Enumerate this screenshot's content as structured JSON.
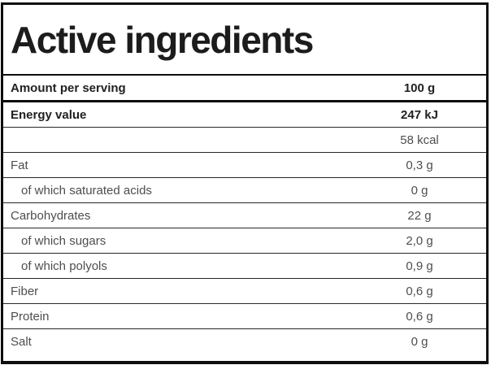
{
  "title": "Active ingredients",
  "table": {
    "serving_row": {
      "label": "Amount per serving",
      "value": "100 g"
    },
    "rows": [
      {
        "label": "Energy value",
        "value": "247 kJ"
      },
      {
        "label": "",
        "value": "58 kcal"
      },
      {
        "label": "Fat",
        "value": "0,3 g"
      },
      {
        "label": "of which saturated acids",
        "value": "0 g"
      },
      {
        "label": "Carbohydrates",
        "value": "22 g"
      },
      {
        "label": "of which sugars",
        "value": "2,0 g"
      },
      {
        "label": "of which polyols",
        "value": "0,9 g"
      },
      {
        "label": "Fiber",
        "value": "0,6 g"
      },
      {
        "label": "Protein",
        "value": "0,6 g"
      },
      {
        "label": "Salt",
        "value": "0 g"
      }
    ]
  },
  "colors": {
    "border": "#0e0e0e",
    "thin_divider": "#272727",
    "title_text": "#1c1c1c",
    "bold_text": "#212121",
    "regular_text": "#4e4e4e",
    "background": "#ffffff"
  }
}
